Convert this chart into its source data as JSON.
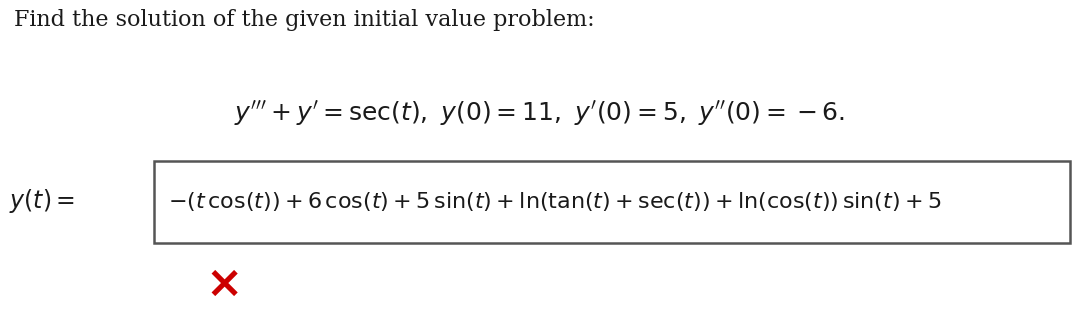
{
  "title_text": "Find the solution of the given initial value problem:",
  "bg_color": "#ffffff",
  "text_color": "#1a1a1a",
  "box_border_color": "#555555",
  "x_color": "#cc0000",
  "title_fontsize": 16,
  "math_fontsize": 16,
  "label_fontsize": 17
}
